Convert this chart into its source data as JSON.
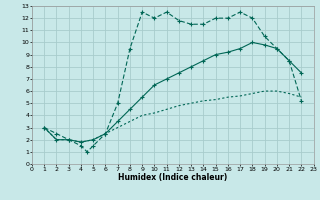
{
  "xlabel": "Humidex (Indice chaleur)",
  "bg_color": "#c8e8e8",
  "grid_color": "#a8cccc",
  "line_color": "#006655",
  "xlim": [
    0,
    23
  ],
  "ylim": [
    0,
    13
  ],
  "xticks": [
    0,
    1,
    2,
    3,
    4,
    5,
    6,
    7,
    8,
    9,
    10,
    11,
    12,
    13,
    14,
    15,
    16,
    17,
    18,
    19,
    20,
    21,
    22,
    23
  ],
  "yticks": [
    0,
    1,
    2,
    3,
    4,
    5,
    6,
    7,
    8,
    9,
    10,
    11,
    12,
    13
  ],
  "line1_x": [
    1,
    2,
    3,
    4,
    4.5,
    5,
    6,
    7,
    8,
    9,
    10,
    11,
    12,
    13,
    14,
    15,
    16,
    17,
    18,
    19,
    20,
    21,
    22
  ],
  "line1_y": [
    3.0,
    2.5,
    2.0,
    1.5,
    1.0,
    1.5,
    2.5,
    5.0,
    9.5,
    12.5,
    12.0,
    12.5,
    11.8,
    11.5,
    11.5,
    12.0,
    12.0,
    12.5,
    12.0,
    10.5,
    9.5,
    8.5,
    5.2
  ],
  "line2_x": [
    1,
    2,
    3,
    4,
    5,
    6,
    7,
    8,
    9,
    10,
    11,
    12,
    13,
    14,
    15,
    16,
    17,
    18,
    19,
    20,
    21,
    22
  ],
  "line2_y": [
    3.0,
    2.0,
    2.0,
    1.8,
    2.0,
    2.5,
    3.5,
    4.5,
    5.5,
    6.5,
    7.0,
    7.5,
    8.0,
    8.5,
    9.0,
    9.2,
    9.5,
    10.0,
    9.8,
    9.5,
    8.5,
    7.5
  ],
  "line3_x": [
    1,
    2,
    3,
    4,
    5,
    6,
    7,
    8,
    9,
    10,
    11,
    12,
    13,
    14,
    15,
    16,
    17,
    18,
    19,
    20,
    21,
    22
  ],
  "line3_y": [
    3.0,
    2.0,
    2.0,
    1.8,
    2.0,
    2.5,
    3.0,
    3.5,
    4.0,
    4.2,
    4.5,
    4.8,
    5.0,
    5.2,
    5.3,
    5.5,
    5.6,
    5.8,
    6.0,
    6.0,
    5.8,
    5.5
  ]
}
